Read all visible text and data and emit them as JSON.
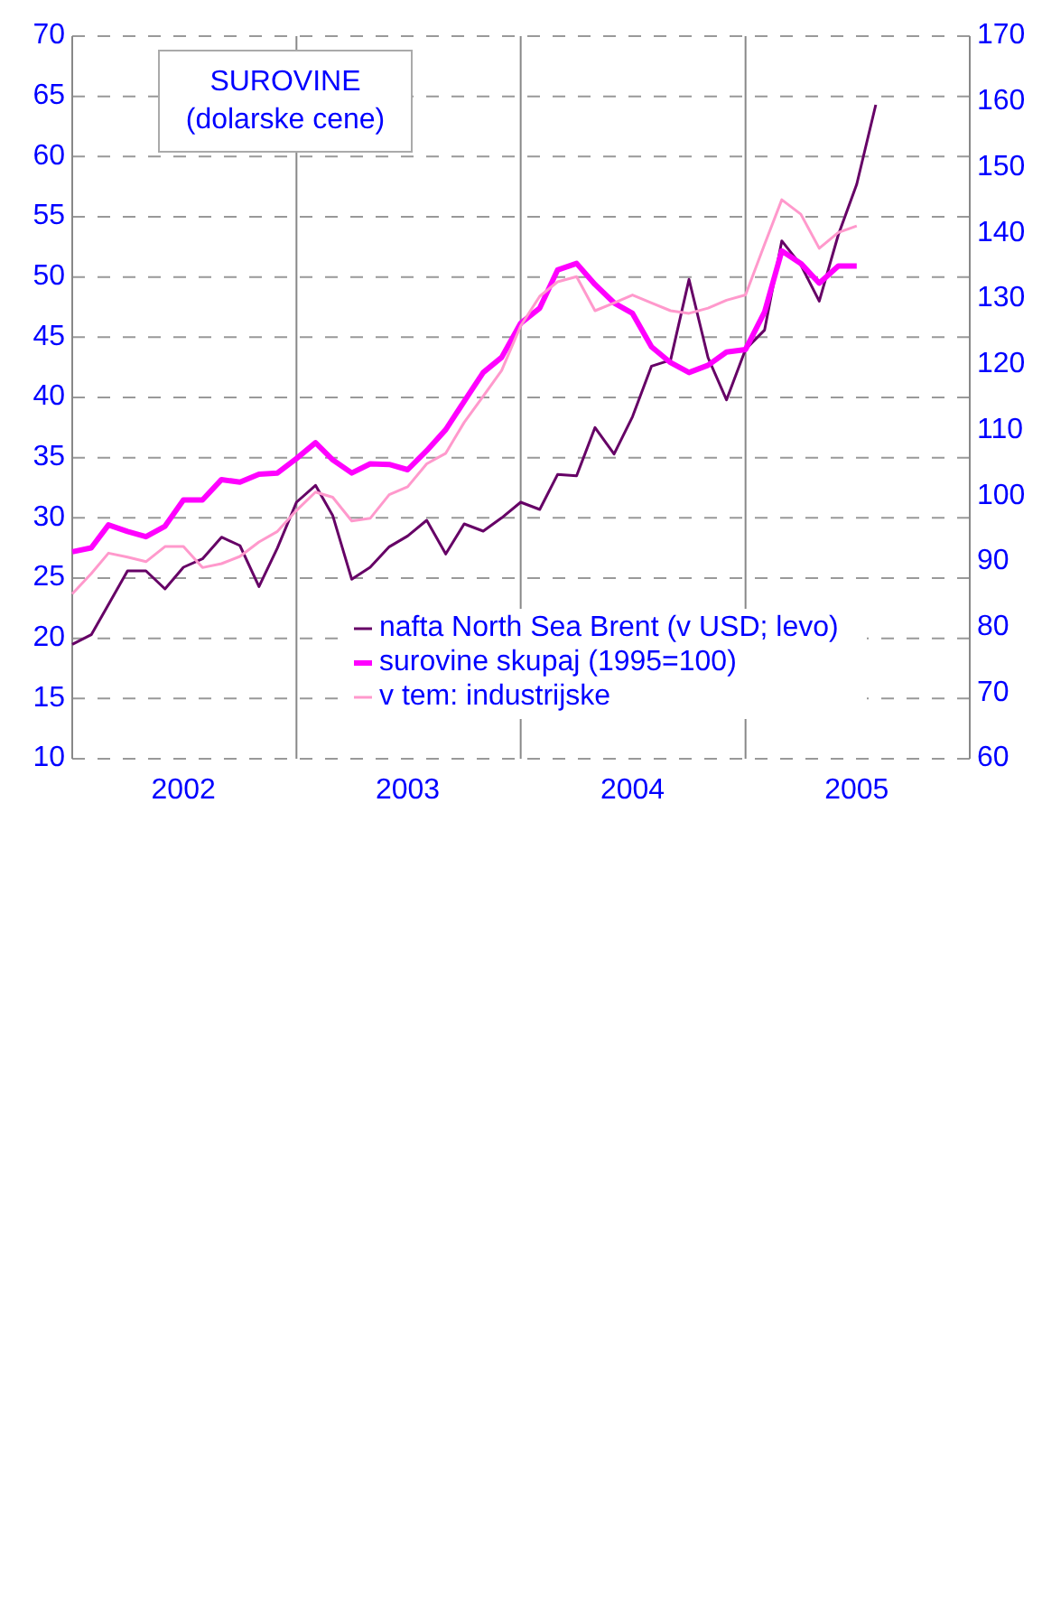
{
  "chart_data": {
    "type": "line",
    "title": "SUROVINE",
    "subtitle": "(dolarske cene)",
    "x": [
      "2002-01",
      "2002-02",
      "2002-03",
      "2002-04",
      "2002-05",
      "2002-06",
      "2002-07",
      "2002-08",
      "2002-09",
      "2002-10",
      "2002-11",
      "2002-12",
      "2003-01",
      "2003-02",
      "2003-03",
      "2003-04",
      "2003-05",
      "2003-06",
      "2003-07",
      "2003-08",
      "2003-09",
      "2003-10",
      "2003-11",
      "2003-12",
      "2004-01",
      "2004-02",
      "2004-03",
      "2004-04",
      "2004-05",
      "2004-06",
      "2004-07",
      "2004-08",
      "2004-09",
      "2004-10",
      "2004-11",
      "2004-12",
      "2005-01",
      "2005-02",
      "2005-03",
      "2005-04",
      "2005-05",
      "2005-06",
      "2005-07",
      "2005-08"
    ],
    "series": [
      {
        "name": "nafta North Sea Brent (v USD; levo)",
        "color": "#660066",
        "values": [
          19.5,
          20.3,
          22.8,
          25.6,
          25.6,
          24.1,
          25.9,
          26.6,
          28.4,
          27.7,
          24.3,
          27.5,
          31.3,
          32.7,
          30.2,
          24.9,
          25.9,
          27.6,
          28.5,
          29.8,
          27.0,
          29.5,
          28.9,
          30.0,
          31.3,
          30.7,
          33.6,
          33.5,
          37.5,
          35.3,
          38.4,
          42.6,
          43.1,
          49.8,
          43.3,
          39.8,
          44.0,
          45.6,
          53.0,
          51.0,
          48.0,
          53.5,
          57.7,
          64.3
        ]
      },
      {
        "name": "surovine skupaj (1995=100)",
        "color": "#ff00ff",
        "axis": "y2",
        "x": [
          "2002-01",
          "2002-02",
          "2002-03",
          "2002-04",
          "2002-05",
          "2002-06",
          "2002-07",
          "2002-08",
          "2002-09",
          "2002-10",
          "2002-11",
          "2002-12",
          "2003-01",
          "2003-02",
          "2003-03",
          "2003-04",
          "2003-05",
          "2003-06",
          "2003-07",
          "2003-08",
          "2003-09",
          "2003-10",
          "2003-11",
          "2003-12",
          "2004-01",
          "2004-02",
          "2004-03",
          "2004-04",
          "2004-05",
          "2004-06",
          "2004-07",
          "2004-08",
          "2004-09",
          "2004-10",
          "2004-11",
          "2004-12",
          "2005-01",
          "2005-02",
          "2005-03",
          "2005-04",
          "2005-05",
          "2005-06",
          "2005-07"
        ],
        "values": [
          91.5,
          92.1,
          95.6,
          94.6,
          93.8,
          95.4,
          99.4,
          99.4,
          102.5,
          102.1,
          103.3,
          103.5,
          105.7,
          108.1,
          105.5,
          103.5,
          104.9,
          104.8,
          104.0,
          106.9,
          110.1,
          114.4,
          118.8,
          121.1,
          126.3,
          128.6,
          134.4,
          135.4,
          132.2,
          129.4,
          127.8,
          122.7,
          120.3,
          118.8,
          119.9,
          121.9,
          122.3,
          128.0,
          137.3,
          135.4,
          132.4,
          135.0,
          135.0
        ]
      },
      {
        "name": "v tem: industrijske",
        "color": "#ff99cc",
        "axis": "y2",
        "x": [
          "2002-01",
          "2002-02",
          "2002-03",
          "2002-04",
          "2002-05",
          "2002-06",
          "2002-07",
          "2002-08",
          "2002-09",
          "2002-10",
          "2002-11",
          "2002-12",
          "2003-01",
          "2003-02",
          "2003-03",
          "2003-04",
          "2003-05",
          "2003-06",
          "2003-07",
          "2003-08",
          "2003-09",
          "2003-10",
          "2003-11",
          "2003-12",
          "2004-01",
          "2004-02",
          "2004-03",
          "2004-04",
          "2004-05",
          "2004-06",
          "2004-07",
          "2004-08",
          "2004-09",
          "2004-10",
          "2004-11",
          "2004-12",
          "2005-01",
          "2005-02",
          "2005-03",
          "2005-04",
          "2005-05",
          "2005-06",
          "2005-07"
        ],
        "values": [
          85.1,
          88.2,
          91.3,
          90.7,
          90.0,
          92.3,
          92.3,
          89.1,
          89.7,
          90.8,
          93.0,
          94.6,
          97.8,
          100.6,
          99.8,
          96.2,
          96.6,
          100.2,
          101.4,
          104.9,
          106.5,
          111.2,
          115.2,
          119.1,
          125.9,
          130.4,
          132.6,
          133.4,
          128.2,
          129.4,
          130.6,
          129.4,
          128.2,
          127.8,
          128.6,
          129.8,
          130.6,
          138.3,
          145.1,
          142.9,
          137.7,
          140.1,
          141.1
        ]
      }
    ],
    "xlim": [
      "2002-01",
      "2006-01"
    ],
    "xticks": [
      {
        "value": "2002-07",
        "label": "2002"
      },
      {
        "value": "2003",
        "label": null
      },
      {
        "value": "2003-07",
        "label": "2003"
      },
      {
        "value": "2004",
        "label": null
      },
      {
        "value": "2004-07",
        "label": "2004"
      },
      {
        "value": "2005",
        "label": null
      },
      {
        "value": "2005-07",
        "label": "2005"
      }
    ],
    "ylim": [
      10,
      70
    ],
    "yticks": [
      10,
      15,
      20,
      25,
      30,
      35,
      40,
      45,
      50,
      55,
      60,
      65,
      70
    ],
    "y2lim": [
      60,
      170
    ],
    "y2ticks": [
      60,
      70,
      80,
      90,
      100,
      110,
      120,
      130,
      140,
      150,
      160,
      170
    ],
    "grid": true,
    "legend": "bottom"
  }
}
